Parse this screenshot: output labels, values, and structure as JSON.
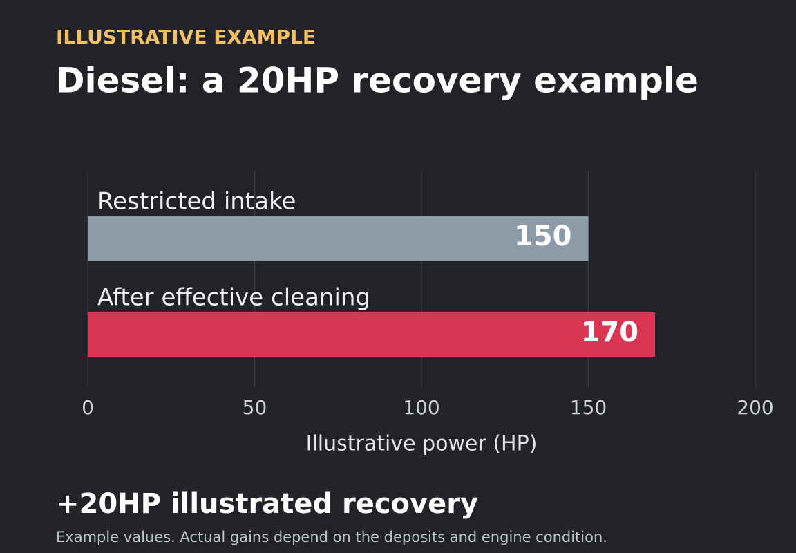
{
  "chart_data": {
    "type": "bar",
    "orientation": "horizontal",
    "kicker": "ILLUSTRATIVE EXAMPLE",
    "title": "Diesel: a 20HP recovery example",
    "categories": [
      "Restricted intake",
      "After effective cleaning"
    ],
    "values": [
      150,
      170
    ],
    "colors": [
      "#8d9aa8",
      "#d93654"
    ],
    "xlim": [
      0,
      200
    ],
    "xticks": [
      0,
      50,
      100,
      150,
      200
    ],
    "xlabel": "Illustrative power (HP)",
    "grid": true,
    "headline": "+20HP illustrated recovery",
    "note": "Example values. Actual gains depend on the deposits and engine condition."
  }
}
